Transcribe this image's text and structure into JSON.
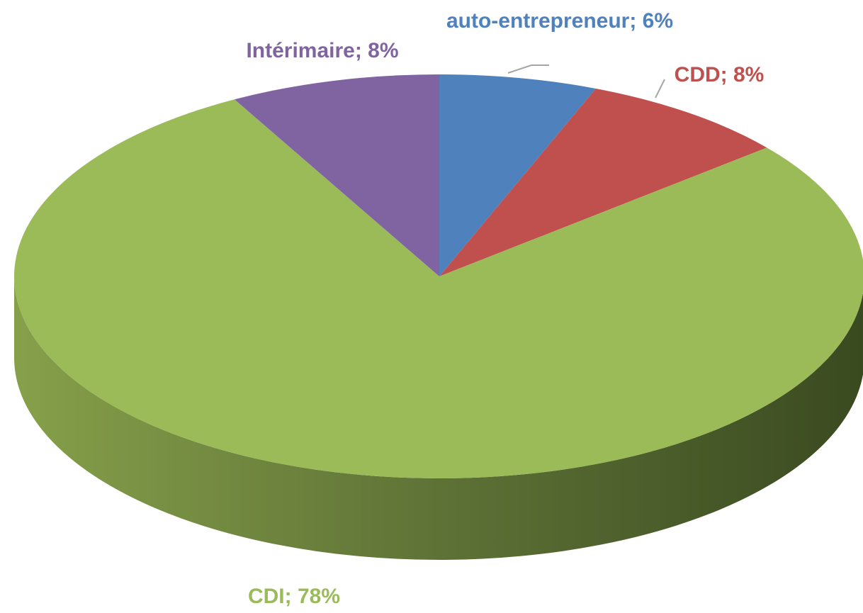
{
  "chart_data": {
    "type": "pie",
    "categories": [
      "auto-entrepreneur",
      "CDD",
      "CDI",
      "Intérimaire"
    ],
    "values": [
      6,
      8,
      78,
      8
    ],
    "value_labels": [
      "auto-entrepreneur; 6%",
      "CDD; 8%",
      "CDI; 78%",
      "Intérimaire; 8%"
    ],
    "colors": [
      "#4f81bd",
      "#c0504d",
      "#9bbb59",
      "#8064a2"
    ]
  }
}
